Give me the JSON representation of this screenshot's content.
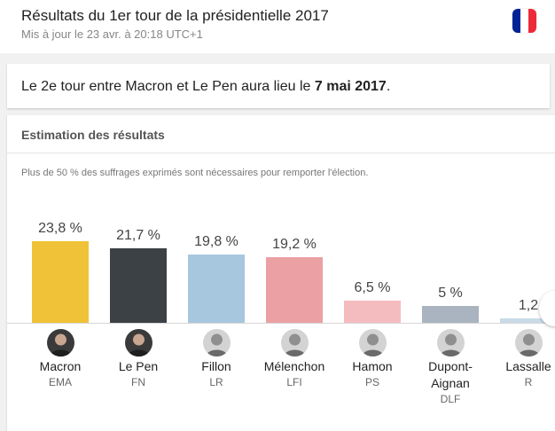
{
  "header": {
    "title": "Résultats du 1er tour de la présidentielle 2017",
    "updated": "Mis à jour le 23 avr. à 20:18 UTC+1",
    "flag_colors": [
      "#002395",
      "#ffffff",
      "#ed2939"
    ]
  },
  "notice": {
    "text_before": "Le 2e tour entre Macron et Le Pen aura lieu le ",
    "date": "7 mai 2017",
    "text_after": "."
  },
  "results": {
    "title": "Estimation des résultats",
    "note": "Plus de 50 % des suffrages exprimés sont nécessaires pour remporter l'élection."
  },
  "chart_data": {
    "type": "bar",
    "categories": [
      "Macron",
      "Le Pen",
      "Fillon",
      "Mélenchon",
      "Hamon",
      "Dupont-Aignan",
      "Lassalle"
    ],
    "name_lines": [
      [
        "Macron"
      ],
      [
        "Le Pen"
      ],
      [
        "Fillon"
      ],
      [
        "Mélenchon"
      ],
      [
        "Hamon"
      ],
      [
        "Dupont-",
        "Aignan"
      ],
      [
        "Lassalle"
      ]
    ],
    "parties": [
      "EMA",
      "FN",
      "LR",
      "LFI",
      "PS",
      "DLF",
      "R"
    ],
    "values": [
      23.8,
      21.7,
      19.8,
      19.2,
      6.5,
      5,
      1.2
    ],
    "value_labels": [
      "23,8 %",
      "21,7 %",
      "19,8 %",
      "19,2 %",
      "6,5 %",
      "5 %",
      "1,2"
    ],
    "colors": [
      "#f0c237",
      "#3c4145",
      "#a7c7de",
      "#eba1a4",
      "#f5bcc0",
      "#a9b4c0",
      "#c9dbe8"
    ],
    "ylim": [
      0,
      23.8
    ]
  }
}
